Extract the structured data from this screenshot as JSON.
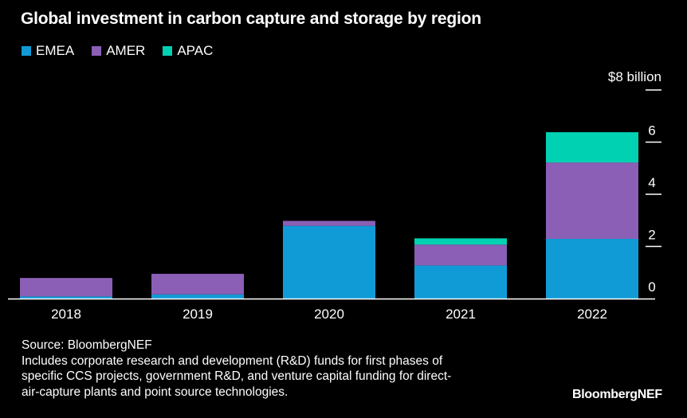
{
  "colors": {
    "EMEA": "#119bd6",
    "AMER": "#8a5fb5",
    "APAC": "#00d1b2",
    "background": "#000000",
    "text": "#ffffff"
  },
  "chart_data": {
    "type": "bar",
    "stacked": true,
    "title": "Global investment in carbon capture and storage by region",
    "categories": [
      "2018",
      "2019",
      "2020",
      "2021",
      "2022"
    ],
    "series": [
      {
        "name": "EMEA",
        "values": [
          0.08,
          0.16,
          2.79,
          1.27,
          2.29
        ]
      },
      {
        "name": "AMER",
        "values": [
          0.71,
          0.79,
          0.19,
          0.8,
          2.93
        ]
      },
      {
        "name": "APAC",
        "values": [
          0.0,
          0.0,
          0.0,
          0.24,
          1.16
        ]
      }
    ],
    "ylabel": "$ billion",
    "yunit_label": "$8 billion",
    "yticks": [
      "0",
      "2",
      "4",
      "6"
    ],
    "ylim": [
      0,
      8
    ],
    "yaxis_position": "right",
    "legend_position": "top-left",
    "grid": false
  },
  "legend": [
    {
      "label": "EMEA"
    },
    {
      "label": "AMER"
    },
    {
      "label": "APAC"
    }
  ],
  "footer": {
    "source": "Source: BloombergNEF",
    "note_lines": [
      "Includes corporate research and development (R&D) funds for first phases of",
      "specific CCS projects, government R&D, and venture capital funding for direct-",
      "air-capture plants and point source technologies."
    ],
    "brand": "BloombergNEF"
  }
}
